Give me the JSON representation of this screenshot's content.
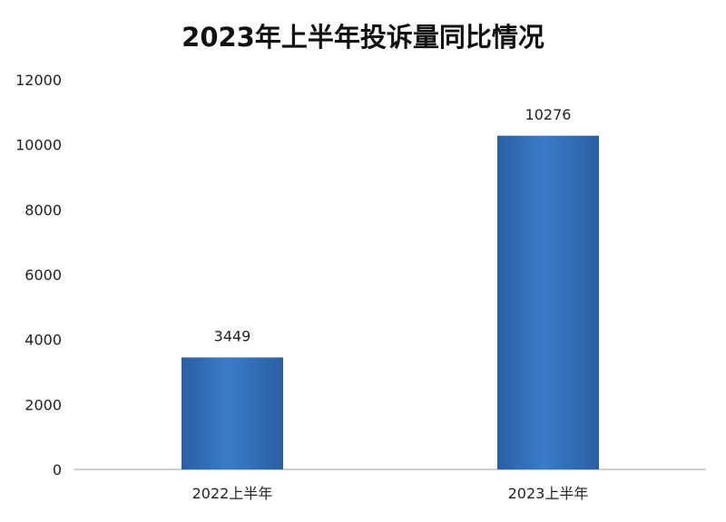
{
  "chart_data": {
    "type": "bar",
    "title": "2023年上半年投诉量同比情况",
    "categories": [
      "2022上半年",
      "2023上半年"
    ],
    "values": [
      3449,
      10276
    ],
    "data_labels": [
      "3449",
      "10276"
    ],
    "xlabel": "",
    "ylabel": "",
    "ylim": [
      0,
      12000
    ],
    "yticks": [
      0,
      2000,
      4000,
      6000,
      8000,
      10000,
      12000
    ],
    "ytick_labels": [
      "0",
      "2000",
      "4000",
      "6000",
      "8000",
      "10000",
      "12000"
    ],
    "grid": false,
    "legend": "none",
    "bar_color": "#2f6db5"
  }
}
